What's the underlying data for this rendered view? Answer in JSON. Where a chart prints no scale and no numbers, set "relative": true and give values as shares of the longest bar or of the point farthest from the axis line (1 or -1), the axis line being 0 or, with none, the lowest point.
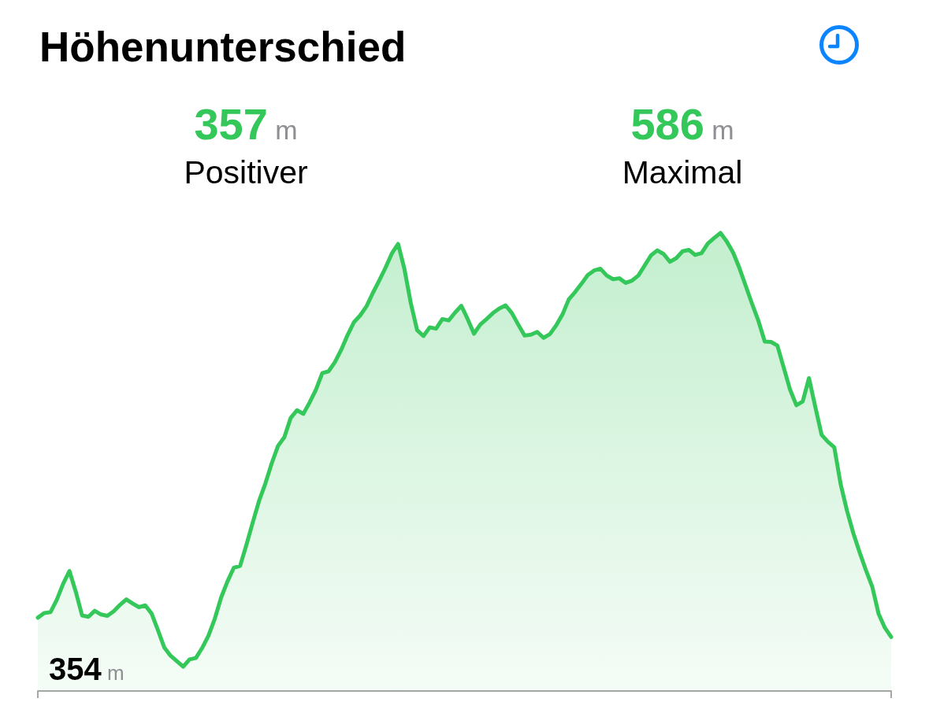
{
  "chart_data": {
    "type": "area",
    "title": "Höhenunterschied",
    "annotations": [
      "357 m",
      "Positiver",
      "586 m",
      "Maximal",
      "354 m"
    ],
    "relative": true,
    "color": "#34c759",
    "categories": [
      null,
      null,
      null,
      null,
      null,
      null,
      null,
      null,
      null,
      null,
      null,
      null,
      null,
      null,
      null,
      null,
      null,
      null,
      null,
      null,
      null,
      null,
      null,
      null,
      null,
      null,
      null,
      null,
      null,
      null,
      null,
      null,
      null,
      null,
      null,
      null,
      null,
      null,
      null,
      null,
      null,
      null,
      null,
      null,
      null,
      null,
      null,
      null,
      null,
      null,
      null,
      null,
      null,
      null,
      null,
      null,
      null,
      null,
      null,
      null,
      null,
      null,
      null,
      null,
      null,
      null,
      null,
      null,
      null,
      null,
      null,
      null,
      null,
      null,
      null,
      null,
      null,
      null,
      null,
      null,
      null,
      null,
      null,
      null,
      null,
      null,
      null,
      null,
      null,
      null,
      null,
      null,
      null,
      null,
      null,
      null,
      null,
      null,
      null,
      null,
      null,
      null,
      null,
      null,
      null,
      null,
      null,
      null,
      null,
      null,
      null,
      null,
      null,
      null,
      null,
      null,
      null,
      null,
      null,
      null,
      null,
      null,
      null,
      null,
      null,
      null,
      null,
      null,
      null,
      null,
      null,
      null,
      null,
      null,
      null,
      null
    ],
    "values": [
      0.16,
      0.17,
      0.172,
      0.199,
      0.234,
      0.262,
      0.217,
      0.165,
      0.162,
      0.175,
      0.167,
      0.164,
      0.174,
      0.188,
      0.2,
      0.191,
      0.183,
      0.187,
      0.169,
      0.133,
      0.095,
      0.077,
      0.065,
      0.053,
      0.069,
      0.072,
      0.094,
      0.121,
      0.158,
      0.204,
      0.239,
      0.269,
      0.273,
      0.319,
      0.368,
      0.415,
      0.453,
      0.497,
      0.535,
      0.554,
      0.596,
      0.613,
      0.605,
      0.63,
      0.658,
      0.694,
      0.698,
      0.718,
      0.745,
      0.777,
      0.805,
      0.82,
      0.84,
      0.869,
      0.896,
      0.924,
      0.955,
      0.976,
      0.921,
      0.847,
      0.788,
      0.775,
      0.794,
      0.791,
      0.812,
      0.809,
      0.826,
      0.841,
      0.812,
      0.78,
      0.8,
      0.812,
      0.825,
      0.835,
      0.842,
      0.825,
      0.8,
      0.776,
      0.778,
      0.784,
      0.771,
      0.779,
      0.798,
      0.822,
      0.855,
      0.871,
      0.889,
      0.908,
      0.918,
      0.922,
      0.907,
      0.899,
      0.901,
      0.891,
      0.896,
      0.907,
      0.929,
      0.951,
      0.962,
      0.954,
      0.937,
      0.945,
      0.96,
      0.963,
      0.952,
      0.956,
      0.977,
      0.989,
      1.0,
      0.981,
      0.957,
      0.923,
      0.884,
      0.845,
      0.808,
      0.763,
      0.762,
      0.754,
      0.706,
      0.658,
      0.624,
      0.632,
      0.683,
      0.62,
      0.559,
      0.544,
      0.532,
      0.452,
      0.394,
      0.345,
      0.303,
      0.264,
      0.228,
      0.169,
      0.138,
      0.118
    ]
  }
}
